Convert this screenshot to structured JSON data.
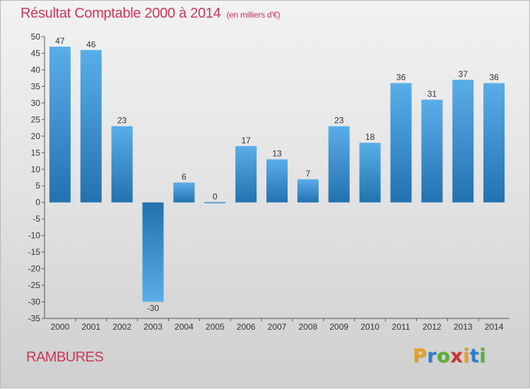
{
  "header": {
    "title": "Résultat Comptable 2000 à 2014",
    "unit": "(en milliers d'€)"
  },
  "commune": "RAMBURES",
  "brand": {
    "letters": [
      "P",
      "r",
      "o",
      "x",
      "i",
      "t",
      "i"
    ],
    "colors": [
      "#e8a020",
      "#2a7fd0",
      "#58b030",
      "#d03030",
      "#e8a020",
      "#2a7fd0",
      "#58b030"
    ]
  },
  "chart_data": {
    "type": "bar",
    "title": "Résultat Comptable 2000 à 2014",
    "subtitle": "(en milliers d'€)",
    "xlabel": "",
    "ylabel": "",
    "categories": [
      "2000",
      "2001",
      "2002",
      "2003",
      "2004",
      "2005",
      "2006",
      "2007",
      "2008",
      "2009",
      "2010",
      "2011",
      "2012",
      "2013",
      "2014"
    ],
    "values": [
      47,
      46,
      23,
      -30,
      6,
      0,
      17,
      13,
      7,
      23,
      18,
      36,
      31,
      37,
      36
    ],
    "ylim": [
      -35,
      50
    ],
    "yticks": [
      50,
      45,
      40,
      35,
      30,
      25,
      20,
      15,
      10,
      5,
      0,
      -5,
      -10,
      -15,
      -20,
      -25,
      -30,
      -35
    ],
    "grid": false,
    "colors": {
      "bar_light": "#5aaee8",
      "bar_dark": "#2272b0",
      "axis": "#555555"
    }
  }
}
